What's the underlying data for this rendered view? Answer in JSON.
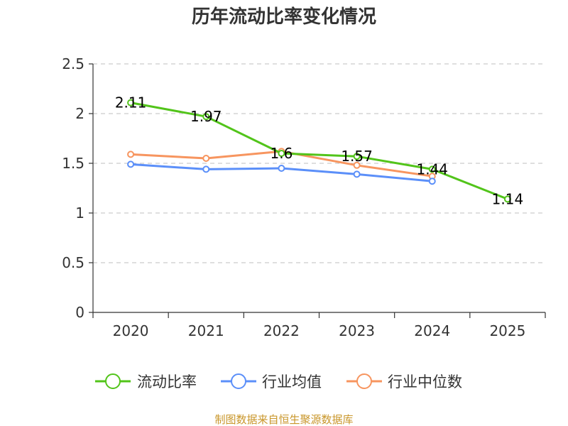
{
  "chart_data": {
    "type": "line",
    "title": "历年流动比率变化情况",
    "categories": [
      "2020",
      "2021",
      "2022",
      "2023",
      "2024",
      "2025"
    ],
    "ylim": [
      0,
      2.5
    ],
    "yticks": [
      "0",
      "0.5",
      "1",
      "1.5",
      "2",
      "2.5"
    ],
    "grid": true,
    "legend_position": "bottom",
    "series": [
      {
        "name": "流动比率",
        "color": "#52c41a",
        "values": [
          2.11,
          1.97,
          1.6,
          1.57,
          1.44,
          1.14
        ],
        "labels": [
          "2.11",
          "1.97",
          "1.6",
          "1.57",
          "1.44",
          "1.14"
        ]
      },
      {
        "name": "行业均值",
        "color": "#5b8ff9",
        "values": [
          1.49,
          1.44,
          1.45,
          1.39,
          1.32,
          null
        ]
      },
      {
        "name": "行业中位数",
        "color": "#f7955f",
        "values": [
          1.59,
          1.55,
          1.62,
          1.48,
          1.37,
          null
        ]
      }
    ]
  },
  "source": "制图数据来自恒生聚源数据库"
}
